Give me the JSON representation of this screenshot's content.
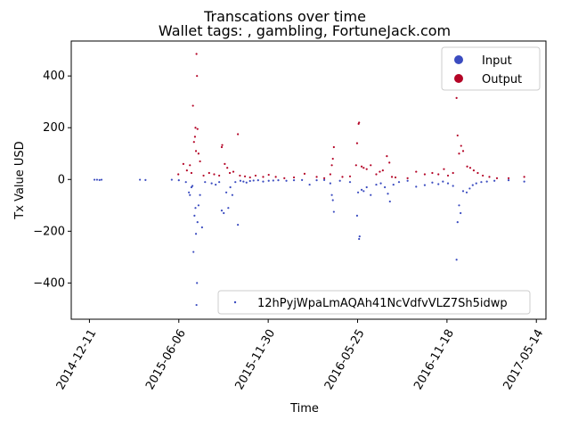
{
  "chart_data": {
    "type": "scatter",
    "title": "Transcations over time",
    "subtitle": "Wallet tags: , gambling, FortuneJack.com",
    "xlabel": "Time",
    "ylabel": "Tx Value USD",
    "x_range": [
      "2014-11-05",
      "2017-06-02"
    ],
    "y_range": [
      -540,
      535
    ],
    "x_ticks": [
      "2014-12-11",
      "2015-06-06",
      "2015-11-30",
      "2016-05-25",
      "2016-11-18",
      "2017-05-14"
    ],
    "y_ticks": [
      -400,
      -200,
      0,
      200,
      400
    ],
    "y_tick_labels": [
      "−400",
      "−200",
      "0",
      "200",
      "400"
    ],
    "grid": false,
    "legends": {
      "classes": {
        "placement": "top-right",
        "items": [
          {
            "label": "Input",
            "color": "#3b4cc0"
          },
          {
            "label": "Output",
            "color": "#b40426"
          }
        ]
      },
      "address": {
        "placement": "lower-right",
        "label": "12hPyjWpaLmAQAh41NcVdfvVLZ7Sh5idwp",
        "color": "#3b4cc0"
      }
    },
    "series": [
      {
        "name": "Input",
        "color": "#3b4cc0",
        "points": [
          [
            "2014-12-21",
            -1
          ],
          [
            "2014-12-26",
            -1
          ],
          [
            "2014-12-31",
            -2
          ],
          [
            "2015-01-04",
            -1
          ],
          [
            "2015-03-21",
            -1
          ],
          [
            "2015-04-01",
            -2
          ],
          [
            "2015-05-23",
            -1
          ],
          [
            "2015-06-06",
            -3
          ],
          [
            "2015-06-20",
            -10
          ],
          [
            "2015-06-26",
            -50
          ],
          [
            "2015-06-28",
            -60
          ],
          [
            "2015-07-01",
            -30
          ],
          [
            "2015-07-03",
            -25
          ],
          [
            "2015-07-05",
            -280
          ],
          [
            "2015-07-07",
            -140
          ],
          [
            "2015-07-09",
            -110
          ],
          [
            "2015-07-10",
            -210
          ],
          [
            "2015-07-11",
            -485
          ],
          [
            "2015-07-12",
            -400
          ],
          [
            "2015-07-13",
            -165
          ],
          [
            "2015-07-15",
            -100
          ],
          [
            "2015-07-18",
            -60
          ],
          [
            "2015-07-22",
            -185
          ],
          [
            "2015-07-28",
            -10
          ],
          [
            "2015-08-10",
            -15
          ],
          [
            "2015-08-18",
            -20
          ],
          [
            "2015-08-25",
            -10
          ],
          [
            "2015-08-30",
            -120
          ],
          [
            "2015-09-03",
            -130
          ],
          [
            "2015-09-08",
            -50
          ],
          [
            "2015-09-12",
            -110
          ],
          [
            "2015-09-16",
            -30
          ],
          [
            "2015-09-20",
            -60
          ],
          [
            "2015-09-26",
            -10
          ],
          [
            "2015-10-01",
            -175
          ],
          [
            "2015-10-06",
            -5
          ],
          [
            "2015-10-12",
            -8
          ],
          [
            "2015-10-18",
            -12
          ],
          [
            "2015-10-25",
            -6
          ],
          [
            "2015-11-01",
            -4
          ],
          [
            "2015-11-10",
            -3
          ],
          [
            "2015-11-20",
            -8
          ],
          [
            "2015-12-01",
            -5
          ],
          [
            "2015-12-10",
            -4
          ],
          [
            "2015-12-20",
            -3
          ],
          [
            "2016-01-05",
            -5
          ],
          [
            "2016-01-20",
            -3
          ],
          [
            "2016-02-05",
            -2
          ],
          [
            "2016-02-20",
            -20
          ],
          [
            "2016-03-05",
            -3
          ],
          [
            "2016-03-20",
            -2
          ],
          [
            "2016-04-01",
            -15
          ],
          [
            "2016-04-04",
            -60
          ],
          [
            "2016-04-06",
            -80
          ],
          [
            "2016-04-08",
            -125
          ],
          [
            "2016-04-20",
            -5
          ],
          [
            "2016-05-10",
            -10
          ],
          [
            "2016-05-24",
            -140
          ],
          [
            "2016-05-26",
            -50
          ],
          [
            "2016-05-28",
            -230
          ],
          [
            "2016-05-29",
            -220
          ],
          [
            "2016-06-02",
            -40
          ],
          [
            "2016-06-06",
            -45
          ],
          [
            "2016-06-12",
            -30
          ],
          [
            "2016-06-20",
            -60
          ],
          [
            "2016-07-01",
            -20
          ],
          [
            "2016-07-10",
            -15
          ],
          [
            "2016-07-18",
            -30
          ],
          [
            "2016-07-24",
            -55
          ],
          [
            "2016-07-28",
            -85
          ],
          [
            "2016-08-04",
            -20
          ],
          [
            "2016-08-15",
            -10
          ],
          [
            "2016-09-01",
            -5
          ],
          [
            "2016-09-18",
            -28
          ],
          [
            "2016-10-05",
            -22
          ],
          [
            "2016-10-20",
            -12
          ],
          [
            "2016-11-01",
            -18
          ],
          [
            "2016-11-10",
            -8
          ],
          [
            "2016-11-20",
            -15
          ],
          [
            "2016-11-30",
            -25
          ],
          [
            "2016-12-07",
            -310
          ],
          [
            "2016-12-09",
            -165
          ],
          [
            "2016-12-12",
            -100
          ],
          [
            "2016-12-15",
            -130
          ],
          [
            "2016-12-20",
            -45
          ],
          [
            "2016-12-27",
            -50
          ],
          [
            "2017-01-02",
            -35
          ],
          [
            "2017-01-08",
            -22
          ],
          [
            "2017-01-15",
            -15
          ],
          [
            "2017-01-25",
            -10
          ],
          [
            "2017-02-05",
            -8
          ],
          [
            "2017-02-20",
            -5
          ],
          [
            "2017-03-20",
            -3
          ],
          [
            "2017-04-20",
            -8
          ]
        ]
      },
      {
        "name": "Output",
        "color": "#b40426",
        "points": [
          [
            "2015-06-05",
            20
          ],
          [
            "2015-06-15",
            60
          ],
          [
            "2015-06-22",
            35
          ],
          [
            "2015-06-28",
            55
          ],
          [
            "2015-07-01",
            25
          ],
          [
            "2015-07-04",
            285
          ],
          [
            "2015-07-06",
            145
          ],
          [
            "2015-07-08",
            165
          ],
          [
            "2015-07-09",
            200
          ],
          [
            "2015-07-10",
            110
          ],
          [
            "2015-07-11",
            485
          ],
          [
            "2015-07-12",
            400
          ],
          [
            "2015-07-13",
            195
          ],
          [
            "2015-07-15",
            100
          ],
          [
            "2015-07-18",
            70
          ],
          [
            "2015-07-25",
            15
          ],
          [
            "2015-08-05",
            25
          ],
          [
            "2015-08-15",
            20
          ],
          [
            "2015-08-25",
            15
          ],
          [
            "2015-08-30",
            125
          ],
          [
            "2015-08-31",
            133
          ],
          [
            "2015-09-05",
            60
          ],
          [
            "2015-09-10",
            45
          ],
          [
            "2015-09-15",
            25
          ],
          [
            "2015-09-22",
            30
          ],
          [
            "2015-10-01",
            175
          ],
          [
            "2015-10-05",
            15
          ],
          [
            "2015-10-15",
            12
          ],
          [
            "2015-10-25",
            8
          ],
          [
            "2015-11-05",
            15
          ],
          [
            "2015-11-20",
            10
          ],
          [
            "2015-12-01",
            18
          ],
          [
            "2015-12-15",
            10
          ],
          [
            "2016-01-01",
            5
          ],
          [
            "2016-01-20",
            8
          ],
          [
            "2016-02-10",
            22
          ],
          [
            "2016-03-05",
            10
          ],
          [
            "2016-03-20",
            5
          ],
          [
            "2016-04-01",
            20
          ],
          [
            "2016-04-04",
            55
          ],
          [
            "2016-04-06",
            80
          ],
          [
            "2016-04-08",
            125
          ],
          [
            "2016-04-25",
            10
          ],
          [
            "2016-05-10",
            12
          ],
          [
            "2016-05-22",
            55
          ],
          [
            "2016-05-24",
            140
          ],
          [
            "2016-05-27",
            215
          ],
          [
            "2016-05-28",
            220
          ],
          [
            "2016-06-02",
            50
          ],
          [
            "2016-06-06",
            45
          ],
          [
            "2016-06-12",
            40
          ],
          [
            "2016-06-20",
            55
          ],
          [
            "2016-07-01",
            20
          ],
          [
            "2016-07-08",
            30
          ],
          [
            "2016-07-14",
            35
          ],
          [
            "2016-07-22",
            90
          ],
          [
            "2016-07-27",
            65
          ],
          [
            "2016-08-01",
            10
          ],
          [
            "2016-08-08",
            8
          ],
          [
            "2016-09-01",
            5
          ],
          [
            "2016-09-18",
            30
          ],
          [
            "2016-10-05",
            20
          ],
          [
            "2016-10-20",
            25
          ],
          [
            "2016-11-01",
            20
          ],
          [
            "2016-11-12",
            40
          ],
          [
            "2016-11-20",
            15
          ],
          [
            "2016-11-30",
            25
          ],
          [
            "2016-12-07",
            315
          ],
          [
            "2016-12-09",
            170
          ],
          [
            "2016-12-12",
            100
          ],
          [
            "2016-12-16",
            130
          ],
          [
            "2016-12-20",
            110
          ],
          [
            "2016-12-28",
            50
          ],
          [
            "2017-01-03",
            45
          ],
          [
            "2017-01-10",
            35
          ],
          [
            "2017-01-18",
            25
          ],
          [
            "2017-01-28",
            15
          ],
          [
            "2017-02-10",
            10
          ],
          [
            "2017-02-25",
            5
          ],
          [
            "2017-03-20",
            5
          ],
          [
            "2017-04-20",
            10
          ]
        ]
      }
    ]
  }
}
